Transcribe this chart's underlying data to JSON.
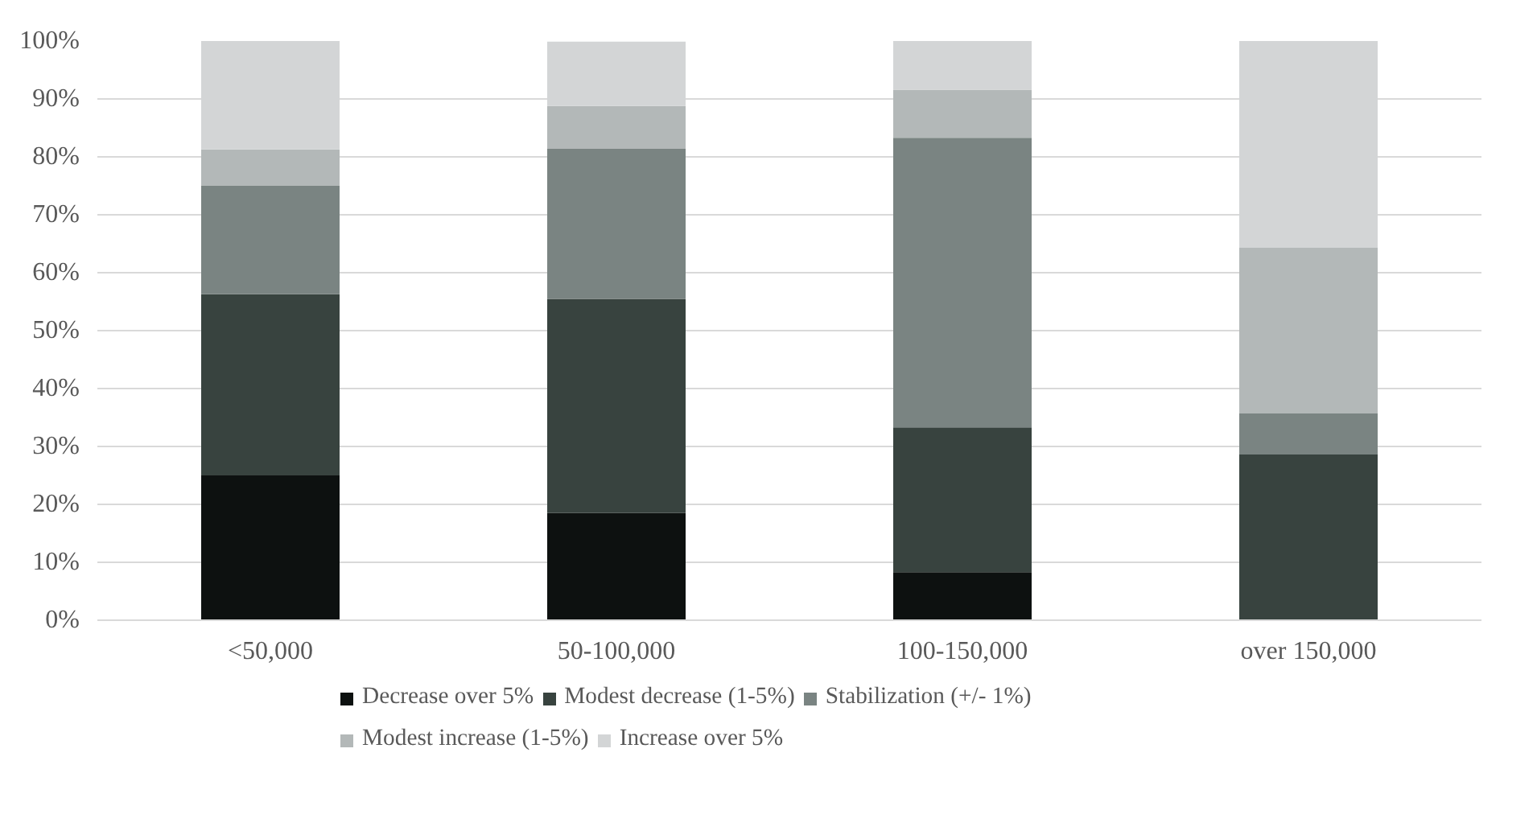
{
  "chart_data": {
    "type": "bar",
    "stacked": true,
    "categories": [
      "<50,000",
      "50-100,000",
      "100-150,000",
      "over 150,000"
    ],
    "series": [
      {
        "name": "Decrease over 5%",
        "color": "#0d1110",
        "values": [
          25,
          18.5,
          8.3,
          0
        ]
      },
      {
        "name": "Modest decrease (1-5%)",
        "color": "#38433f",
        "values": [
          31.3,
          37.0,
          25.0,
          28.6
        ]
      },
      {
        "name": "Stabilization (+/- 1%)",
        "color": "#7a8482",
        "values": [
          18.7,
          25.9,
          50.0,
          7.1
        ]
      },
      {
        "name": "Modest increase (1-5%)",
        "color": "#b3b8b8",
        "values": [
          6.3,
          7.4,
          8.3,
          28.6
        ]
      },
      {
        "name": "Increase over 5%",
        "color": "#d3d5d6",
        "values": [
          18.7,
          11.1,
          8.4,
          35.7
        ]
      }
    ],
    "ylim": [
      0,
      100
    ],
    "yticks": [
      {
        "value": 0,
        "label": "0%"
      },
      {
        "value": 10,
        "label": "10%"
      },
      {
        "value": 20,
        "label": "20%"
      },
      {
        "value": 30,
        "label": "30%"
      },
      {
        "value": 40,
        "label": "40%"
      },
      {
        "value": 50,
        "label": "50%"
      },
      {
        "value": 60,
        "label": "60%"
      },
      {
        "value": 70,
        "label": "70%"
      },
      {
        "value": 80,
        "label": "80%"
      },
      {
        "value": 90,
        "label": "90%"
      },
      {
        "value": 100,
        "label": "100%"
      }
    ],
    "grid": "y",
    "legend": "bottom"
  }
}
